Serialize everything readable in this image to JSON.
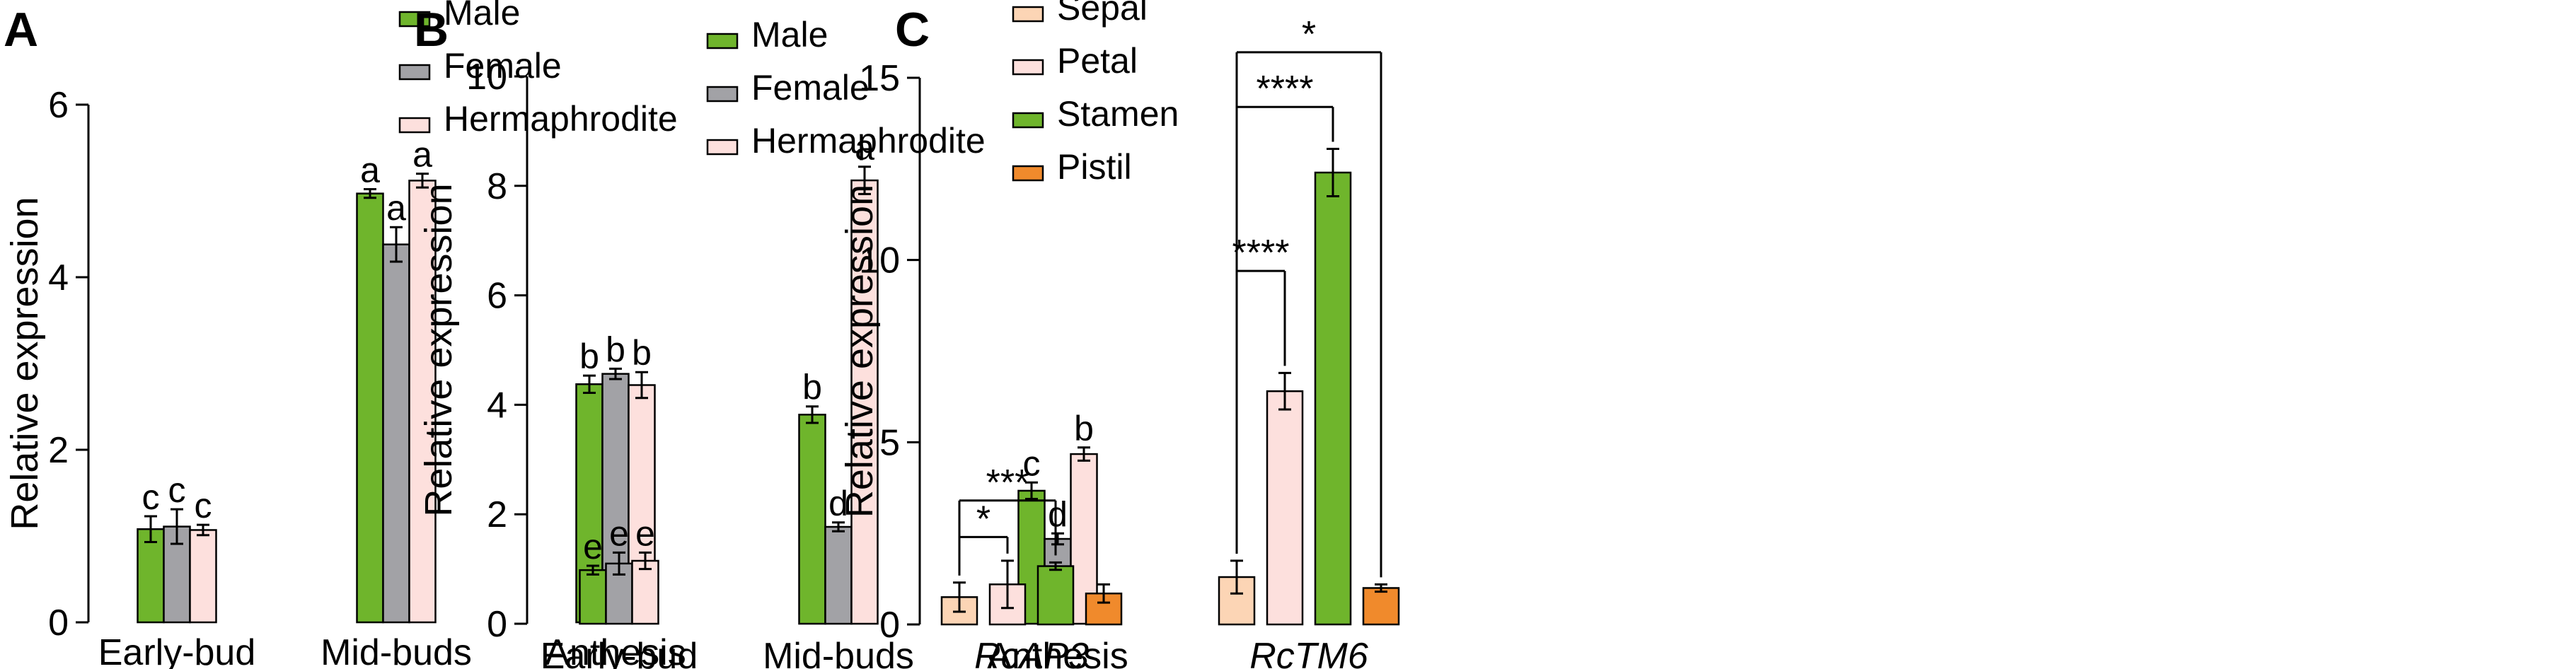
{
  "colors": {
    "Male": "#6fb52c",
    "Female": "#a2a2a6",
    "Hermaphrodite": "#fde0dd",
    "Sepal": "#fcd5b5",
    "Petal": "#fde0dd",
    "Stamen": "#6fb52c",
    "Pistil": "#f08a2c"
  },
  "chart_data": [
    {
      "panel_label": "A",
      "type": "bar",
      "ylabel": "Relative expression",
      "ylim": [
        0,
        6
      ],
      "yticks": [
        "0",
        "2",
        "4",
        "6"
      ],
      "categories": [
        "Early-bud",
        "Mid-buds",
        "Anthesis"
      ],
      "legend_position": "top-right",
      "series": [
        {
          "name": "Male",
          "values": [
            1.08,
            4.97,
            2.76
          ],
          "errors": [
            0.15,
            0.05,
            0.1
          ],
          "letters": [
            "c",
            "a",
            "b"
          ]
        },
        {
          "name": "Female",
          "values": [
            1.11,
            4.38,
            2.88
          ],
          "errors": [
            0.2,
            0.2,
            0.06
          ],
          "letters": [
            "c",
            "a",
            "b"
          ]
        },
        {
          "name": "Hermaphrodite",
          "values": [
            1.07,
            5.12,
            2.75
          ],
          "errors": [
            0.06,
            0.08,
            0.15
          ],
          "letters": [
            "c",
            "a",
            "b"
          ]
        }
      ]
    },
    {
      "panel_label": "B",
      "type": "bar",
      "ylabel": "Relative expression",
      "ylim": [
        0,
        10
      ],
      "yticks": [
        "0",
        "2",
        "4",
        "6",
        "8",
        "10"
      ],
      "categories": [
        "Early-bud",
        "Mid-buds",
        "Anthesis"
      ],
      "legend_position": "top-right",
      "series": [
        {
          "name": "Male",
          "values": [
            0.98,
            3.82,
            2.43
          ],
          "errors": [
            0.08,
            0.15,
            0.15
          ],
          "letters": [
            "e",
            "b",
            "c"
          ]
        },
        {
          "name": "Female",
          "values": [
            1.1,
            1.77,
            1.55
          ],
          "errors": [
            0.2,
            0.08,
            0.1
          ],
          "letters": [
            "e",
            "d",
            "d"
          ]
        },
        {
          "name": "Hermaphrodite",
          "values": [
            1.15,
            8.1,
            3.1
          ],
          "errors": [
            0.15,
            0.25,
            0.12
          ],
          "letters": [
            "e",
            "a",
            "b"
          ]
        }
      ]
    },
    {
      "panel_label": "C",
      "type": "bar",
      "ylabel": "Relative expression",
      "ylim": [
        0,
        15
      ],
      "yticks": [
        "0",
        "5",
        "10",
        "15"
      ],
      "categories": [
        "RcAP3",
        "RcTM6"
      ],
      "categories_italic": true,
      "legend_position": "top-left",
      "series": [
        {
          "name": "Sepal",
          "values": [
            0.75,
            1.3
          ],
          "errors": [
            0.4,
            0.45
          ]
        },
        {
          "name": "Petal",
          "values": [
            1.1,
            6.4
          ],
          "errors": [
            0.65,
            0.5
          ]
        },
        {
          "name": "Stamen",
          "values": [
            1.6,
            12.4
          ],
          "errors": [
            0.1,
            0.65
          ]
        },
        {
          "name": "Pistil",
          "values": [
            0.85,
            1.0
          ],
          "errors": [
            0.25,
            0.1
          ]
        }
      ],
      "significance": [
        {
          "group": 0,
          "from": 0,
          "to": 1,
          "label": "*"
        },
        {
          "group": 0,
          "from": 0,
          "to": 2,
          "label": "***"
        },
        {
          "group": 1,
          "from": 0,
          "to": 1,
          "label": "****"
        },
        {
          "group": 1,
          "from": 0,
          "to": 2,
          "label": "****"
        },
        {
          "group": 1,
          "from": 0,
          "to": 3,
          "label": "*"
        }
      ]
    }
  ]
}
